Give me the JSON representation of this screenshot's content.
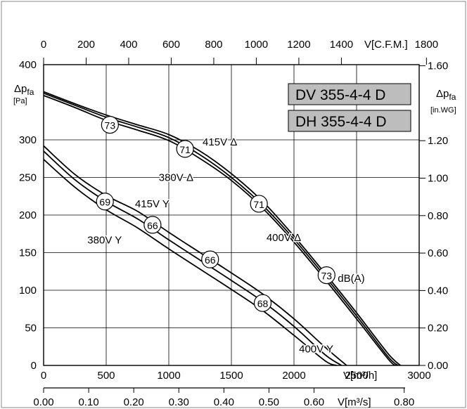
{
  "chart_data": {
    "type": "line",
    "model_labels": [
      "DV 355-4-4 D",
      "DH 355-4-4 D"
    ],
    "axes": {
      "x_bottom": {
        "label": "V[m³/h]",
        "ticks": [
          "0",
          "500",
          "1000",
          "1500",
          "2000",
          "2500",
          "3000"
        ],
        "range": [
          0,
          3000
        ]
      },
      "x_bottom2": {
        "label": "V[m³/s]",
        "ticks": [
          "0.00",
          "0.10",
          "0.20",
          "0.30",
          "0.40",
          "0.50",
          "0.60",
          "0.80"
        ],
        "range": [
          0,
          0.8333
        ]
      },
      "x_top": {
        "label": "V[C.F.M.]",
        "ticks": [
          "0",
          "200",
          "400",
          "600",
          "800",
          "1000",
          "1200",
          "1400",
          "1800"
        ],
        "range": [
          0,
          1765.7
        ]
      },
      "y_left": {
        "label_main": "Δp",
        "label_sub": "fa",
        "unit": "[Pa]",
        "ticks": [
          "0",
          "50",
          "100",
          "150",
          "200",
          "250",
          "300",
          "400"
        ],
        "range": [
          0,
          400
        ]
      },
      "y_right": {
        "label_main": "Δp",
        "label_sub": "fa",
        "unit": "[in.WG]",
        "ticks": [
          "0.00",
          "0.20",
          "0.40",
          "0.60",
          "0.80",
          "1.00",
          "1.20",
          "1.60"
        ],
        "range": [
          0,
          1.606
        ]
      }
    },
    "grid": true,
    "series": [
      {
        "name": "415V Δ",
        "x": [
          0,
          250,
          500,
          750,
          1000,
          1250,
          1500,
          1750,
          2000,
          2250,
          2500,
          2750,
          2850
        ],
        "y": [
          364,
          348,
          333,
          320,
          307,
          285,
          255,
          218,
          172,
          122,
          70,
          16,
          0
        ]
      },
      {
        "name": "400V Δ",
        "x": [
          0,
          250,
          500,
          750,
          1000,
          1250,
          1500,
          1750,
          2000,
          2250,
          2500,
          2750,
          2830
        ],
        "y": [
          362,
          346,
          330,
          317,
          303,
          280,
          250,
          213,
          168,
          118,
          66,
          12,
          0
        ]
      },
      {
        "name": "380V Δ",
        "x": [
          0,
          250,
          500,
          750,
          1000,
          1250,
          1500,
          1750,
          2000,
          2250,
          2500,
          2750,
          2810
        ],
        "y": [
          359,
          343,
          326,
          313,
          299,
          275,
          246,
          209,
          164,
          114,
          62,
          9,
          0
        ]
      },
      {
        "name": "415V Y",
        "x": [
          0,
          250,
          500,
          750,
          1000,
          1250,
          1500,
          1750,
          2000,
          2250,
          2420
        ],
        "y": [
          292,
          254,
          226,
          205,
          177,
          150,
          123,
          95,
          62,
          24,
          0
        ]
      },
      {
        "name": "400V Y",
        "x": [
          0,
          250,
          500,
          750,
          1000,
          1250,
          1500,
          1750,
          2000,
          2250,
          2380
        ],
        "y": [
          285,
          247,
          218,
          195,
          167,
          140,
          113,
          85,
          52,
          14,
          0
        ]
      },
      {
        "name": "380V Y",
        "x": [
          0,
          250,
          500,
          750,
          1000,
          1250,
          1500,
          1750,
          2000,
          2250,
          2340
        ],
        "y": [
          274,
          237,
          207,
          183,
          155,
          128,
          101,
          73,
          40,
          6,
          0
        ]
      }
    ],
    "markers": [
      {
        "text": "73",
        "x": 530,
        "y": 320
      },
      {
        "text": "71",
        "x": 1130,
        "y": 288
      },
      {
        "text": "71",
        "x": 1720,
        "y": 215
      },
      {
        "text": "73",
        "x": 2260,
        "y": 120
      },
      {
        "text": "69",
        "x": 490,
        "y": 218
      },
      {
        "text": "66",
        "x": 870,
        "y": 187
      },
      {
        "text": "66",
        "x": 1330,
        "y": 141
      },
      {
        "text": "68",
        "x": 1750,
        "y": 83
      }
    ],
    "curve_labels": [
      {
        "text": "415V Δ",
        "x": 1270,
        "y": 297
      },
      {
        "text": "380V Δ",
        "x": 920,
        "y": 250
      },
      {
        "text": "415V Y",
        "x": 730,
        "y": 215
      },
      {
        "text": "380V Y",
        "x": 350,
        "y": 167
      },
      {
        "text": "400V Δ",
        "x": 1780,
        "y": 170
      },
      {
        "text": "dB(A)",
        "x": 2350,
        "y": 116
      },
      {
        "text": "400V Y",
        "x": 2040,
        "y": 22
      }
    ]
  }
}
